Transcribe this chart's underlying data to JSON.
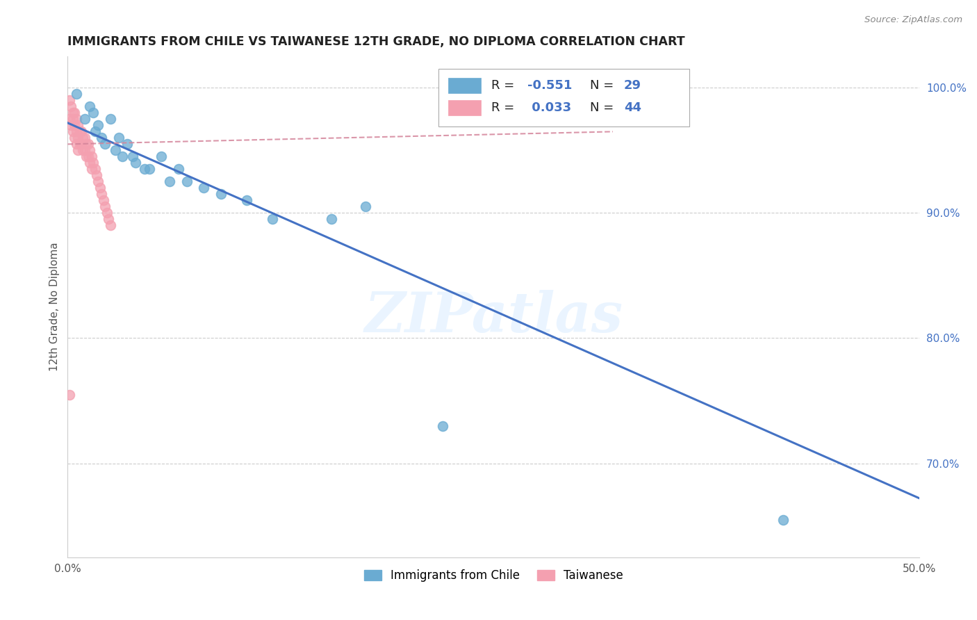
{
  "title": "IMMIGRANTS FROM CHILE VS TAIWANESE 12TH GRADE, NO DIPLOMA CORRELATION CHART",
  "source": "Source: ZipAtlas.com",
  "ylabel": "12th Grade, No Diploma",
  "xlim": [
    0.0,
    0.5
  ],
  "ylim": [
    0.625,
    1.025
  ],
  "xticks": [
    0.0,
    0.1,
    0.2,
    0.3,
    0.4,
    0.5
  ],
  "xticklabels": [
    "0.0%",
    "",
    "",
    "",
    "",
    "50.0%"
  ],
  "yticks_right": [
    1.0,
    0.9,
    0.8,
    0.7
  ],
  "ytick_right_labels": [
    "100.0%",
    "90.0%",
    "80.0%",
    "70.0%"
  ],
  "grid_color": "#cccccc",
  "background_color": "#ffffff",
  "chile_color": "#6aabd2",
  "taiwanese_color": "#f4a0b0",
  "chile_line_color": "#4472C4",
  "taiwanese_line_color": "#d4849a",
  "legend_r_chile": "-0.551",
  "legend_n_chile": "29",
  "legend_r_taiwanese": "0.033",
  "legend_n_taiwanese": "44",
  "watermark": "ZIPatlas",
  "chile_line_x": [
    0.0,
    0.5
  ],
  "chile_line_y": [
    0.972,
    0.672
  ],
  "taiwanese_line_x": [
    0.0,
    0.32
  ],
  "taiwanese_line_y": [
    0.955,
    0.965
  ],
  "chile_scatter_x": [
    0.005,
    0.01,
    0.013,
    0.015,
    0.016,
    0.018,
    0.02,
    0.022,
    0.025,
    0.028,
    0.03,
    0.032,
    0.035,
    0.038,
    0.04,
    0.045,
    0.048,
    0.055,
    0.06,
    0.065,
    0.07,
    0.08,
    0.09,
    0.105,
    0.12,
    0.155,
    0.175,
    0.22,
    0.42
  ],
  "chile_scatter_y": [
    0.995,
    0.975,
    0.985,
    0.98,
    0.965,
    0.97,
    0.96,
    0.955,
    0.975,
    0.95,
    0.96,
    0.945,
    0.955,
    0.945,
    0.94,
    0.935,
    0.935,
    0.945,
    0.925,
    0.935,
    0.925,
    0.92,
    0.915,
    0.91,
    0.895,
    0.895,
    0.905,
    0.73,
    0.655
  ],
  "taiwanese_scatter_x": [
    0.001,
    0.001,
    0.002,
    0.002,
    0.003,
    0.003,
    0.003,
    0.004,
    0.004,
    0.004,
    0.005,
    0.005,
    0.005,
    0.006,
    0.006,
    0.006,
    0.007,
    0.007,
    0.008,
    0.008,
    0.009,
    0.009,
    0.01,
    0.01,
    0.011,
    0.011,
    0.012,
    0.012,
    0.013,
    0.013,
    0.014,
    0.014,
    0.015,
    0.016,
    0.017,
    0.018,
    0.019,
    0.02,
    0.021,
    0.022,
    0.023,
    0.024,
    0.025,
    0.001
  ],
  "taiwanese_scatter_y": [
    0.99,
    0.975,
    0.985,
    0.97,
    0.98,
    0.965,
    0.975,
    0.98,
    0.97,
    0.96,
    0.975,
    0.965,
    0.955,
    0.97,
    0.96,
    0.95,
    0.965,
    0.955,
    0.965,
    0.955,
    0.96,
    0.95,
    0.96,
    0.95,
    0.955,
    0.945,
    0.955,
    0.945,
    0.95,
    0.94,
    0.945,
    0.935,
    0.94,
    0.935,
    0.93,
    0.925,
    0.92,
    0.915,
    0.91,
    0.905,
    0.9,
    0.895,
    0.89,
    0.755
  ]
}
